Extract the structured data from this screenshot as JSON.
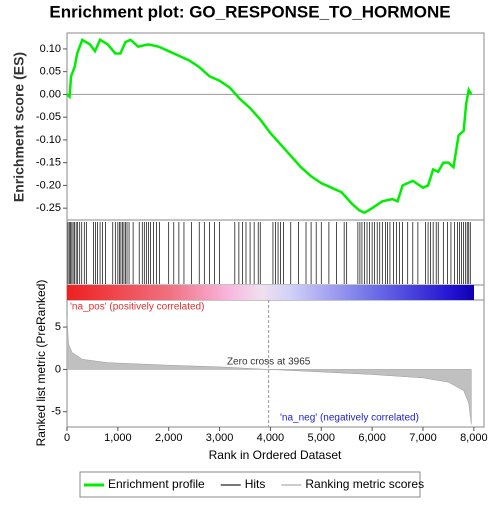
{
  "chart_data": [
    {
      "type": "line",
      "title": "Enrichment plot: GO_RESPONSE_TO_HORMONE",
      "ylabel": "Enrichment score (ES)",
      "color": "#00ee00",
      "xlim": [
        0,
        8200
      ],
      "ylim": [
        -0.276,
        0.135
      ],
      "yticks": [
        {
          "value": 0.1,
          "label": "0.10"
        },
        {
          "value": 0.05,
          "label": "0.05"
        },
        {
          "value": 0,
          "label": "0.00"
        },
        {
          "value": -0.05,
          "label": "-0.05"
        },
        {
          "value": -0.1,
          "label": "-0.10"
        },
        {
          "value": -0.15,
          "label": "-0.15"
        },
        {
          "value": -0.2,
          "label": "-0.20"
        },
        {
          "value": -0.25,
          "label": "-0.25"
        }
      ],
      "x": [
        0,
        50,
        80,
        150,
        200,
        250,
        300,
        450,
        550,
        650,
        800,
        950,
        1050,
        1150,
        1250,
        1400,
        1600,
        1800,
        2000,
        2200,
        2400,
        2600,
        2800,
        3000,
        3200,
        3400,
        3600,
        3800,
        4000,
        4200,
        4400,
        4600,
        4800,
        5000,
        5200,
        5400,
        5600,
        5750,
        5850,
        6000,
        6200,
        6400,
        6500,
        6600,
        6800,
        7000,
        7100,
        7200,
        7300,
        7400,
        7500,
        7600,
        7700,
        7800,
        7850,
        7900,
        7950
      ],
      "values": [
        0,
        -0.005,
        0.04,
        0.06,
        0.09,
        0.105,
        0.12,
        0.11,
        0.095,
        0.12,
        0.11,
        0.09,
        0.09,
        0.115,
        0.12,
        0.105,
        0.11,
        0.105,
        0.095,
        0.085,
        0.075,
        0.06,
        0.04,
        0.03,
        0.015,
        -0.01,
        -0.03,
        -0.055,
        -0.085,
        -0.11,
        -0.135,
        -0.16,
        -0.18,
        -0.195,
        -0.205,
        -0.215,
        -0.24,
        -0.255,
        -0.26,
        -0.25,
        -0.235,
        -0.23,
        -0.235,
        -0.2,
        -0.19,
        -0.205,
        -0.2,
        -0.165,
        -0.17,
        -0.15,
        -0.15,
        -0.16,
        -0.09,
        -0.08,
        -0.02,
        0.01,
        0
      ]
    },
    {
      "type": "rug",
      "color": "#000000",
      "xlim": [
        0,
        8200
      ],
      "x": [
        20,
        45,
        70,
        95,
        120,
        150,
        180,
        210,
        250,
        290,
        340,
        380,
        520,
        560,
        600,
        650,
        700,
        760,
        900,
        950,
        1000,
        1030,
        1060,
        1090,
        1120,
        1150,
        1180,
        1220,
        1300,
        1420,
        1480,
        1520,
        1560,
        1600,
        1640,
        1700,
        1760,
        1820,
        2000,
        2100,
        2200,
        2300,
        2450,
        2600,
        2700,
        2800,
        2900,
        3000,
        3300,
        3380,
        3450,
        3520,
        3600,
        3680,
        3760,
        3800,
        4050,
        4100,
        4150,
        4200,
        4260,
        4400,
        4550,
        4700,
        4800,
        4900,
        5000,
        5150,
        5300,
        5450,
        5500,
        5720,
        5760,
        5800,
        5850,
        5900,
        5950,
        6000,
        6050,
        6100,
        6150,
        6200,
        6260,
        6300,
        6350,
        6420,
        6480,
        6540,
        6600,
        6700,
        6800,
        6900,
        7050,
        7100,
        7150,
        7200,
        7260,
        7300,
        7400,
        7480,
        7550,
        7620,
        7680,
        7720,
        7760,
        7800,
        7840,
        7870,
        7900,
        7930
      ]
    },
    {
      "type": "area",
      "ylabel": "Ranked list metric (PreRanked)",
      "xlabel": "Rank in Ordered Dataset",
      "color": "#c0c0c0",
      "xlim": [
        0,
        8200
      ],
      "ylim": [
        -6.8,
        8.2
      ],
      "xticks": [
        0,
        {
          "value": 1000,
          "label": "1,000"
        },
        {
          "value": 2000,
          "label": "2,000"
        },
        {
          "value": 3000,
          "label": "3,000"
        },
        {
          "value": 4000,
          "label": "4,000"
        },
        {
          "value": 5000,
          "label": "5,000"
        },
        {
          "value": 6000,
          "label": "6,000"
        },
        {
          "value": 7000,
          "label": "7,000"
        },
        {
          "value": 8000,
          "label": "8,000"
        }
      ],
      "yticks": [
        5,
        0,
        -5
      ],
      "x": [
        0,
        30,
        100,
        300,
        800,
        2000,
        3000,
        3965,
        5000,
        6000,
        7000,
        7500,
        7800,
        7900,
        7950
      ],
      "values": [
        6,
        3,
        2,
        1.2,
        0.8,
        0.5,
        0.3,
        0,
        -0.3,
        -0.6,
        -1,
        -1.5,
        -2.5,
        -4,
        -6.5
      ],
      "zero_cross": 3965,
      "annotations": [
        "'na_pos' (positively correlated)",
        "Zero cross at 3965",
        "'na_neg' (negatively correlated)"
      ]
    }
  ],
  "legend": [
    {
      "name": "Enrichment profile",
      "color": "#00ee00"
    },
    {
      "name": "Hits",
      "color": "#777777"
    },
    {
      "name": "Ranking metric scores",
      "color": "#cccccc"
    }
  ]
}
